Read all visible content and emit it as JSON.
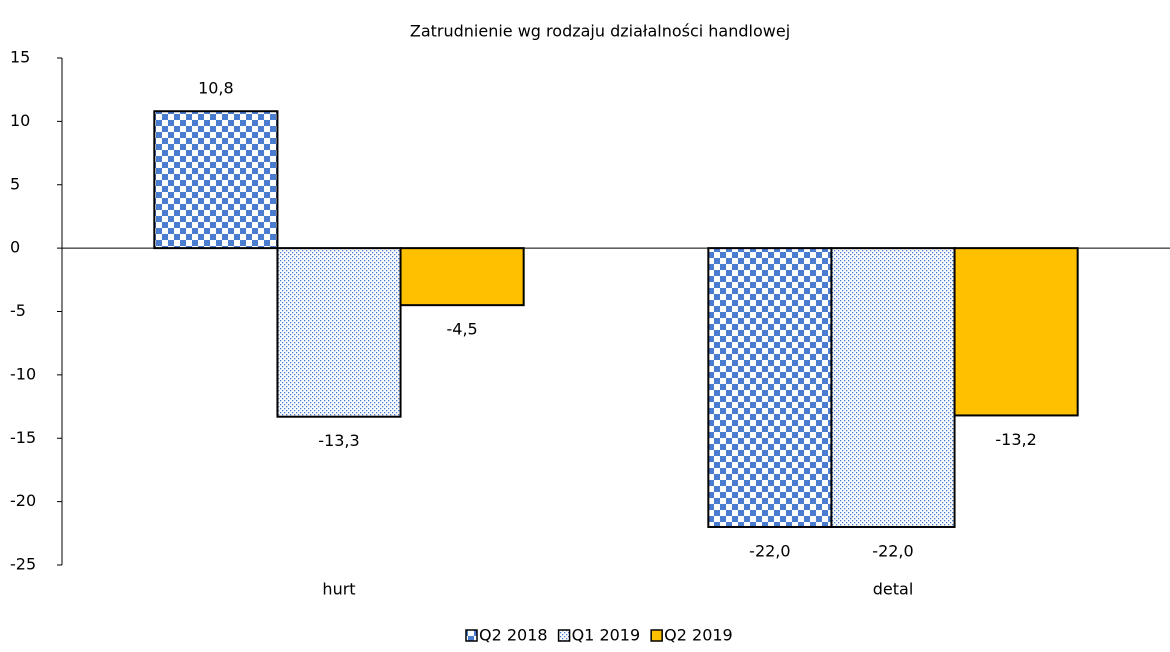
{
  "chart_data": {
    "type": "bar",
    "title": "Zatrudnienie wg rodzaju działalności handlowej",
    "categories": [
      "hurt",
      "detal"
    ],
    "series": [
      {
        "name": "Q2 2018",
        "color": "#4a7ccf",
        "pattern": "checker",
        "values": [
          10.8,
          -22.0
        ],
        "value_labels": [
          "10,8",
          "-22,0"
        ]
      },
      {
        "name": "Q1 2019",
        "color": "#4a7ccf",
        "pattern": "dots",
        "values": [
          -13.3,
          -22.0
        ],
        "value_labels": [
          "-13,3",
          "-22,0"
        ]
      },
      {
        "name": "Q2 2019",
        "color": "#ffc000",
        "pattern": "solid",
        "values": [
          -4.5,
          -13.2
        ],
        "value_labels": [
          "-4,5",
          "-13,2"
        ]
      }
    ],
    "ylim": [
      -25,
      15
    ],
    "yticks": [
      -25,
      -20,
      -15,
      -10,
      -5,
      0,
      5,
      10,
      15
    ],
    "legend": "bottom"
  }
}
